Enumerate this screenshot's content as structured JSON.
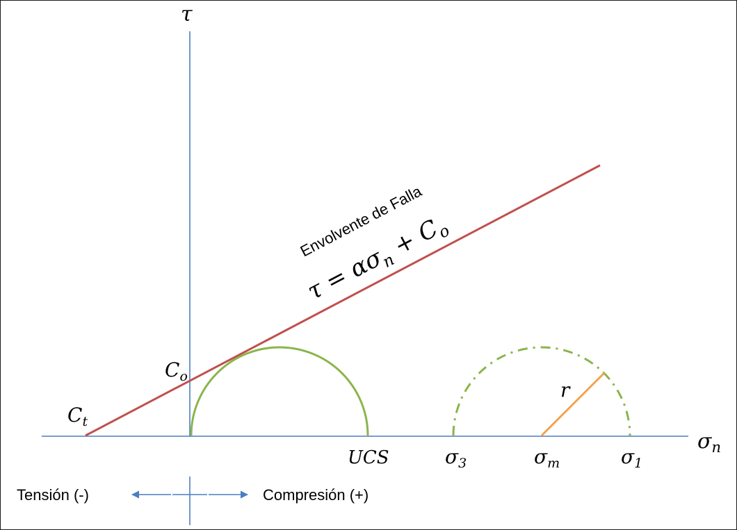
{
  "labels": {
    "tau_axis": "τ",
    "sigma_axis_main": "σ",
    "sigma_axis_sub": "n",
    "c_t_main": "C",
    "c_t_sub": "t",
    "c_o_main": "C",
    "c_o_sub": "o",
    "ucs": "UCS",
    "sigma3_main": "σ",
    "sigma3_sub": "3",
    "sigma_m_main": "σ",
    "sigma_m_sub": "m",
    "sigma1_main": "σ",
    "sigma1_sub": "1",
    "radius": "r",
    "envelope_title": "Envolvente de Falla",
    "equation_lhs": "τ = ασ",
    "equation_sub": "n",
    "equation_rhs": " + C",
    "equation_rhs_sub": "o",
    "tension": "Tensión (-)",
    "compression": "Compresión (+)"
  },
  "colors": {
    "axis": "#4a7fc1",
    "envelope": "#c0504d",
    "circle": "#8ab54a",
    "radius": "#f4a24b",
    "border": "#1a1a1a"
  }
}
